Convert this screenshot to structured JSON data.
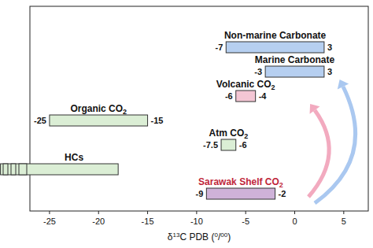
{
  "chart_data": {
    "type": "bar",
    "orientation": "horizontal",
    "categories": [
      "Non-marine Carbonate",
      "Marine Carbonate",
      "Volcanic CO2",
      "Organic CO2",
      "Atm CO2",
      "HCs",
      "Sarawak Shelf CO2"
    ],
    "low": [
      -7,
      -3,
      -6,
      -25,
      -7.5,
      -30,
      -9
    ],
    "high": [
      3,
      3,
      -4,
      -15,
      -6,
      -18,
      -2
    ],
    "low_labels": [
      "-7",
      "-3",
      "-6",
      "-25",
      "-7.5",
      null,
      "-9"
    ],
    "high_labels": [
      "3",
      "3",
      "-4",
      "-15",
      "-6",
      null,
      "-2"
    ],
    "colors": [
      "#b6cff0",
      "#b6cff0",
      "#f4c6d4",
      "#dbeed5",
      "#dbeed5",
      "#dbeed5",
      "#cfb2d8"
    ],
    "x_label": "δ13C PDB (0/00)",
    "xlim": [
      -27,
      7.5
    ],
    "xticks": [
      -25,
      -20,
      -15,
      -10,
      -5,
      0,
      5
    ],
    "data_labels": true,
    "grid": false
  }
}
